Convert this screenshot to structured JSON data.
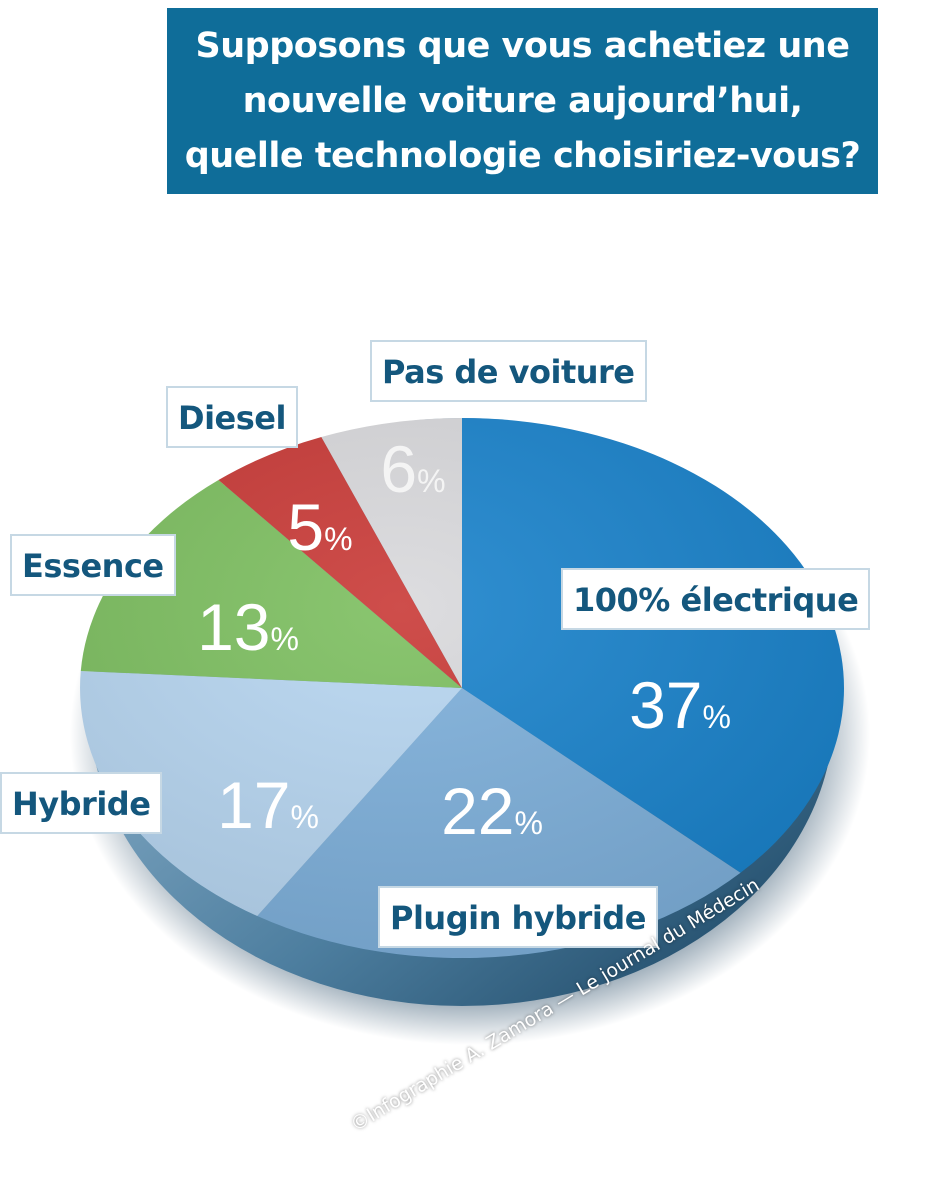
{
  "title": "Supposons que vous achetiez une nouvelle voiture aujourd’hui, quelle technologie choisiriez-vous?",
  "credit": "©Infographie A. Zamora — Le journal du Médecin",
  "chart_data": {
    "type": "pie",
    "title": "Supposons que vous achetiez une nouvelle voiture aujourd’hui, quelle technologie choisiriez-vous?",
    "unit": "%",
    "slices": [
      {
        "label": "100% électrique",
        "value": 37,
        "value_text": "37",
        "color": "#1a83cc"
      },
      {
        "label": "Plugin hybride",
        "value": 22,
        "value_text": "22",
        "color": "#7eb0db"
      },
      {
        "label": "Hybride",
        "value": 17,
        "value_text": "17",
        "color": "#b7d6f1"
      },
      {
        "label": "Essence",
        "value": 13,
        "value_text": "13",
        "color": "#7dbf60"
      },
      {
        "label": "Diesel",
        "value": 5,
        "value_text": "5",
        "color": "#c93a37"
      },
      {
        "label": "Pas de voiture",
        "value": 6,
        "value_text": "6",
        "color": "#d9d9dc"
      }
    ]
  }
}
